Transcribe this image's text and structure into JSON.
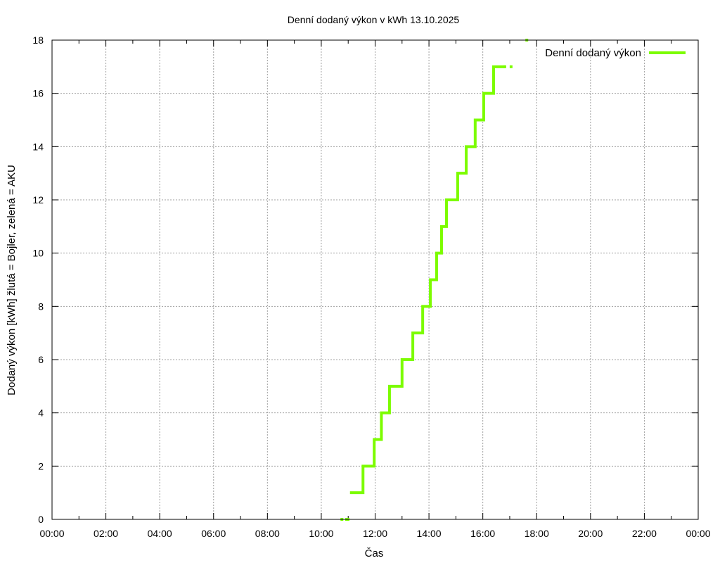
{
  "chart_data": {
    "type": "line",
    "title": "Denní dodaný výkon v kWh 13.10.2025",
    "xlabel": "Čas",
    "ylabel": "Dodaný výkon [kWh]  žlutá = Bojler, zelená = AKU",
    "xlim": [
      "00:00",
      "24:00"
    ],
    "ylim": [
      0,
      18
    ],
    "x_ticks": [
      "00:00",
      "02:00",
      "04:00",
      "06:00",
      "08:00",
      "10:00",
      "12:00",
      "14:00",
      "16:00",
      "18:00",
      "20:00",
      "22:00",
      "00:00"
    ],
    "y_ticks": [
      0,
      2,
      4,
      6,
      8,
      10,
      12,
      14,
      16,
      18
    ],
    "grid": true,
    "legend_position": "top-right",
    "series": [
      {
        "name": "Denní dodaný výkon",
        "color": "#7cfc00",
        "style": "step",
        "points": [
          {
            "x": "10:46",
            "y": 0
          },
          {
            "x": "10:58",
            "y": 0
          },
          {
            "x": "11:04",
            "y": 1
          },
          {
            "x": "11:33",
            "y": 2
          },
          {
            "x": "11:58",
            "y": 3
          },
          {
            "x": "12:14",
            "y": 4
          },
          {
            "x": "12:32",
            "y": 5
          },
          {
            "x": "13:00",
            "y": 6
          },
          {
            "x": "13:24",
            "y": 7
          },
          {
            "x": "13:46",
            "y": 8
          },
          {
            "x": "14:03",
            "y": 9
          },
          {
            "x": "14:17",
            "y": 10
          },
          {
            "x": "14:28",
            "y": 11
          },
          {
            "x": "14:39",
            "y": 12
          },
          {
            "x": "15:04",
            "y": 13
          },
          {
            "x": "15:23",
            "y": 14
          },
          {
            "x": "15:43",
            "y": 15
          },
          {
            "x": "16:02",
            "y": 16
          },
          {
            "x": "16:24",
            "y": 17
          },
          {
            "x": "16:49",
            "y": 17
          },
          {
            "x": "17:03",
            "y": 17
          },
          {
            "x": "17:38",
            "y": 18
          }
        ]
      }
    ]
  }
}
